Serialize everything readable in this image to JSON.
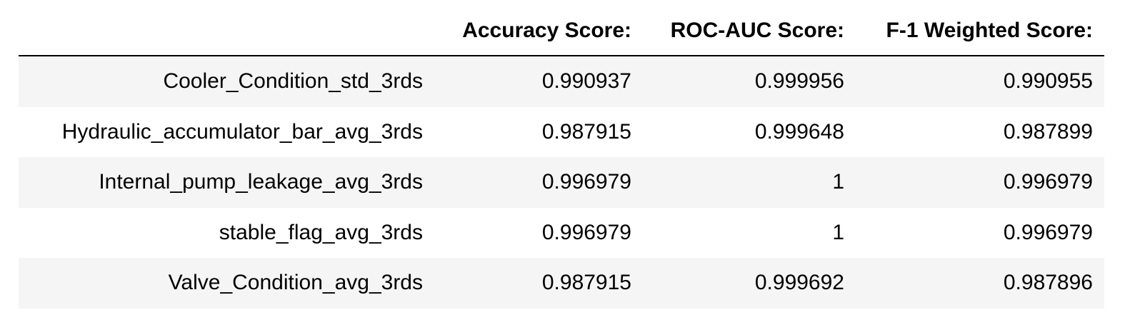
{
  "table": {
    "columns": [
      "",
      "Accuracy Score:",
      "ROC-AUC Score:",
      "F-1 Weighted Score:"
    ],
    "rows": [
      {
        "label": "Cooler_Condition_std_3rds",
        "accuracy": "0.990937",
        "roc_auc": "0.999956",
        "f1_weighted": "0.990955"
      },
      {
        "label": "Hydraulic_accumulator_bar_avg_3rds",
        "accuracy": "0.987915",
        "roc_auc": "0.999648",
        "f1_weighted": "0.987899"
      },
      {
        "label": "Internal_pump_leakage_avg_3rds",
        "accuracy": "0.996979",
        "roc_auc": "1",
        "f1_weighted": "0.996979"
      },
      {
        "label": "stable_flag_avg_3rds",
        "accuracy": "0.996979",
        "roc_auc": "1",
        "f1_weighted": "0.996979"
      },
      {
        "label": "Valve_Condition_avg_3rds",
        "accuracy": "0.987915",
        "roc_auc": "0.999692",
        "f1_weighted": "0.987896"
      }
    ]
  },
  "colors": {
    "stripe": "#f5f5f5",
    "header_rule": "#000000"
  }
}
